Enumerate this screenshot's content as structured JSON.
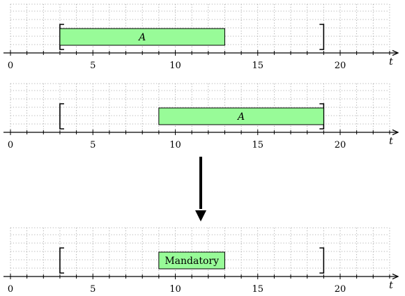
{
  "axis": {
    "min": 0,
    "max": 23,
    "label": "t",
    "tick_labels": [
      "0",
      "5",
      "10",
      "15",
      "20"
    ]
  },
  "colors": {
    "box_fill": "#98fb98",
    "stroke": "#000000",
    "grid": "#9a9a9a"
  },
  "panels": [
    {
      "window": [
        3,
        19
      ],
      "box": {
        "start": 3,
        "end": 13,
        "label": "A",
        "italic": true
      }
    },
    {
      "window": [
        3,
        19
      ],
      "box": {
        "start": 9,
        "end": 19,
        "label": "A",
        "italic": true
      }
    },
    {
      "window": [
        3,
        19
      ],
      "box": {
        "start": 9,
        "end": 13,
        "label": "Mandatory",
        "italic": false
      }
    }
  ],
  "arrow": {
    "direction": "down"
  }
}
